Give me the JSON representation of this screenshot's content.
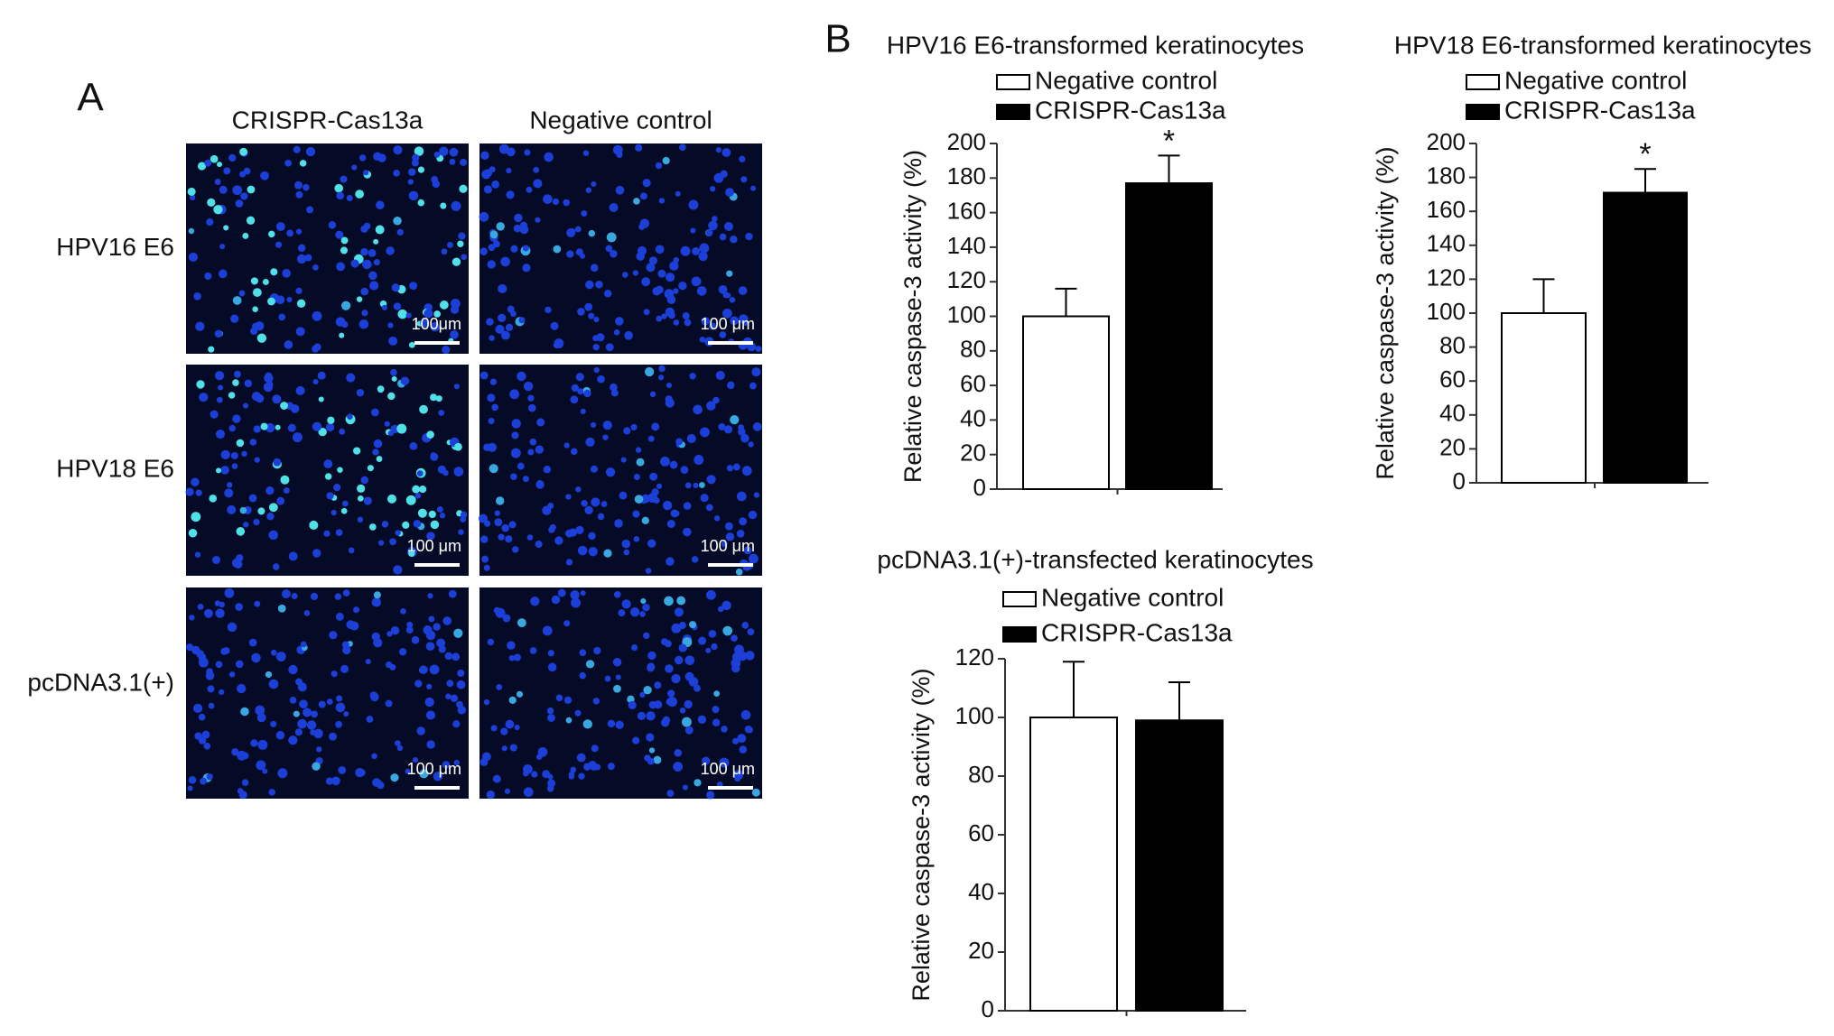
{
  "panel_a": {
    "label": "A",
    "columns": [
      "CRISPR-Cas13a",
      "Negative control"
    ],
    "rows": [
      "HPV16 E6",
      "HPV18 E6",
      "pcDNA3.1(+)"
    ],
    "scale_bars": [
      [
        "100μm",
        "100 μm"
      ],
      [
        "100 μm",
        "100 μm"
      ],
      [
        "100 μm",
        "100 μm"
      ]
    ]
  },
  "panel_b": {
    "label": "B"
  },
  "chart_data": [
    {
      "type": "bar",
      "title": "HPV16 E6-transformed keratinocytes",
      "y_label": "Relative caspase-3 activity (%)",
      "categories": [
        null
      ],
      "ylim": [
        0,
        200
      ],
      "yticks": [
        0,
        20,
        40,
        60,
        80,
        100,
        120,
        140,
        160,
        180,
        200
      ],
      "series": [
        {
          "name": "Negative control",
          "color": "#ffffff",
          "values": [
            100
          ],
          "errors": [
            16
          ]
        },
        {
          "name": "CRISPR-Cas13a",
          "color": "#000000",
          "values": [
            177
          ],
          "errors": [
            16
          ],
          "significance": [
            "*"
          ]
        }
      ]
    },
    {
      "type": "bar",
      "title": "HPV18 E6-transformed keratinocytes",
      "y_label": "Relative caspase-3 activity (%)",
      "categories": [
        null
      ],
      "ylim": [
        0,
        200
      ],
      "yticks": [
        0,
        20,
        40,
        60,
        80,
        100,
        120,
        140,
        160,
        180,
        200
      ],
      "series": [
        {
          "name": "Negative control",
          "color": "#ffffff",
          "values": [
            100
          ],
          "errors": [
            20
          ]
        },
        {
          "name": "CRISPR-Cas13a",
          "color": "#000000",
          "values": [
            171
          ],
          "errors": [
            14
          ],
          "significance": [
            "*"
          ]
        }
      ]
    },
    {
      "type": "bar",
      "title": "pcDNA3.1(+)-transfected keratinocytes",
      "y_label": "Relative caspase-3 activity (%)",
      "categories": [
        null
      ],
      "ylim": [
        0,
        120
      ],
      "yticks": [
        0,
        20,
        40,
        60,
        80,
        100,
        120
      ],
      "series": [
        {
          "name": "Negative control",
          "color": "#ffffff",
          "values": [
            100
          ],
          "errors": [
            19
          ]
        },
        {
          "name": "CRISPR-Cas13a",
          "color": "#000000",
          "values": [
            99
          ],
          "errors": [
            13
          ]
        }
      ]
    }
  ]
}
